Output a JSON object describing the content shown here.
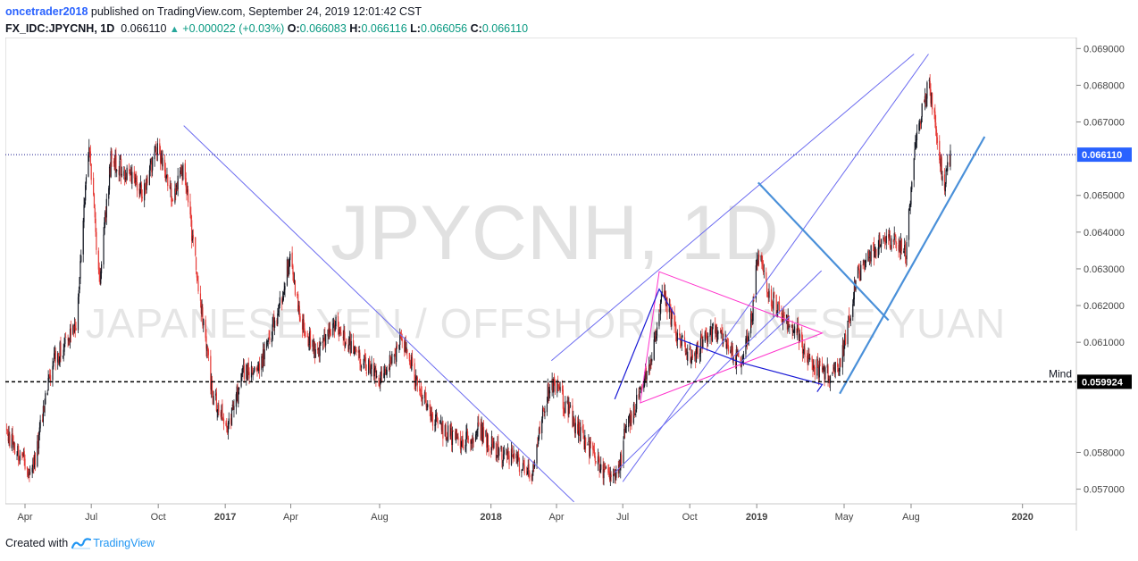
{
  "header": {
    "author": "oncetrader2018",
    "published_text": "published on TradingView.com, September 24, 2019 12:01:42 CST",
    "symbol": "FX_IDC:JPYCNH, 1D",
    "price": "0.066110",
    "change": "+0.000022 (+0.03%)",
    "o_label": "O:",
    "o_value": "0.066083",
    "h_label": "H:",
    "h_value": "0.066116",
    "l_label": "L:",
    "l_value": "0.066056",
    "c_label": "C:",
    "c_value": "0.066110"
  },
  "watermark": {
    "line1": "JPYCNH, 1D",
    "line2": "JAPANESE YEN / OFFSHORE CHINESE YUAN"
  },
  "colors": {
    "up": "#131722",
    "down": "#e53935",
    "trendline": "#6b6bf0",
    "channel_thick": "#4a90d9",
    "magenta": "#ff33cc",
    "dark_blue": "#1a1ad6",
    "price_label_bg": "#2962ff"
  },
  "footer": {
    "created_with": "Created with",
    "brand": "TradingView"
  },
  "chart_data": {
    "type": "candlestick",
    "title": "JPYCNH, 1D",
    "subtitle": "JAPANESE YEN / OFFSHORE CHINESE YUAN",
    "ylim": [
      0.0566,
      0.0693
    ],
    "y_ticks": [
      "0.069000",
      "0.068000",
      "0.067000",
      "0.065000",
      "0.064000",
      "0.063000",
      "0.062000",
      "0.061000",
      "0.058000",
      "0.057000"
    ],
    "x_range": [
      "2016-03-05",
      "2020-03-15"
    ],
    "x_ticks": [
      {
        "label": "Apr",
        "date": "2016-04-01"
      },
      {
        "label": "Jul",
        "date": "2016-07-01"
      },
      {
        "label": "Oct",
        "date": "2016-10-01"
      },
      {
        "label": "2017",
        "date": "2017-01-01",
        "bold": true
      },
      {
        "label": "Apr",
        "date": "2017-04-01"
      },
      {
        "label": "Aug",
        "date": "2017-08-01"
      },
      {
        "label": "2018",
        "date": "2018-01-01",
        "bold": true
      },
      {
        "label": "Apr",
        "date": "2018-04-01"
      },
      {
        "label": "Jul",
        "date": "2018-07-01"
      },
      {
        "label": "Oct",
        "date": "2018-10-01"
      },
      {
        "label": "2019",
        "date": "2019-01-01",
        "bold": true
      },
      {
        "label": "May",
        "date": "2019-05-01"
      },
      {
        "label": "Aug",
        "date": "2019-08-01"
      },
      {
        "label": "2020",
        "date": "2020-01-01",
        "bold": true
      }
    ],
    "close_anchors": [
      [
        "2016-03-05",
        0.0586
      ],
      [
        "2016-04-10",
        0.0574
      ],
      [
        "2016-05-10",
        0.0605
      ],
      [
        "2016-06-10",
        0.0614
      ],
      [
        "2016-06-28",
        0.0665
      ],
      [
        "2016-07-12",
        0.0626
      ],
      [
        "2016-07-28",
        0.066
      ],
      [
        "2016-08-20",
        0.0656
      ],
      [
        "2016-09-10",
        0.065
      ],
      [
        "2016-09-30",
        0.0664
      ],
      [
        "2016-10-20",
        0.065
      ],
      [
        "2016-11-05",
        0.0658
      ],
      [
        "2016-11-25",
        0.0625
      ],
      [
        "2016-12-15",
        0.0595
      ],
      [
        "2017-01-05",
        0.0587
      ],
      [
        "2017-01-25",
        0.0601
      ],
      [
        "2017-02-20",
        0.0605
      ],
      [
        "2017-03-15",
        0.0618
      ],
      [
        "2017-03-30",
        0.0633
      ],
      [
        "2017-04-15",
        0.0616
      ],
      [
        "2017-05-05",
        0.0607
      ],
      [
        "2017-06-01",
        0.0615
      ],
      [
        "2017-07-01",
        0.0606
      ],
      [
        "2017-08-01",
        0.06
      ],
      [
        "2017-09-01",
        0.0611
      ],
      [
        "2017-09-25",
        0.0597
      ],
      [
        "2017-10-20",
        0.0587
      ],
      [
        "2017-11-20",
        0.0583
      ],
      [
        "2017-12-15",
        0.0586
      ],
      [
        "2018-01-10",
        0.058
      ],
      [
        "2018-02-05",
        0.0578
      ],
      [
        "2018-02-25",
        0.0573
      ],
      [
        "2018-03-10",
        0.0588
      ],
      [
        "2018-03-25",
        0.06
      ],
      [
        "2018-04-15",
        0.0592
      ],
      [
        "2018-05-10",
        0.0583
      ],
      [
        "2018-06-05",
        0.0575
      ],
      [
        "2018-06-25",
        0.0574
      ],
      [
        "2018-07-05",
        0.0587
      ],
      [
        "2018-07-25",
        0.0596
      ],
      [
        "2018-08-10",
        0.0605
      ],
      [
        "2018-08-25",
        0.0625
      ],
      [
        "2018-09-10",
        0.0613
      ],
      [
        "2018-10-05",
        0.0605
      ],
      [
        "2018-10-20",
        0.0611
      ],
      [
        "2018-11-05",
        0.0613
      ],
      [
        "2018-11-25",
        0.0607
      ],
      [
        "2018-12-10",
        0.0605
      ],
      [
        "2018-12-25",
        0.0616
      ],
      [
        "2019-01-03",
        0.0635
      ],
      [
        "2019-01-15",
        0.0624
      ],
      [
        "2019-02-05",
        0.0617
      ],
      [
        "2019-02-25",
        0.0613
      ],
      [
        "2019-03-15",
        0.0605
      ],
      [
        "2019-03-31",
        0.0602
      ],
      [
        "2019-04-15",
        0.0601
      ],
      [
        "2019-04-25",
        0.0604
      ],
      [
        "2019-05-05",
        0.0614
      ],
      [
        "2019-05-20",
        0.0628
      ],
      [
        "2019-06-05",
        0.0634
      ],
      [
        "2019-06-25",
        0.0638
      ],
      [
        "2019-07-10",
        0.0637
      ],
      [
        "2019-07-25",
        0.0635
      ],
      [
        "2019-08-05",
        0.066
      ],
      [
        "2019-08-15",
        0.0672
      ],
      [
        "2019-08-25",
        0.0681
      ],
      [
        "2019-09-05",
        0.0668
      ],
      [
        "2019-09-15",
        0.0652
      ],
      [
        "2019-09-24",
        0.06611
      ]
    ],
    "last_price": {
      "value": 0.06611,
      "label": "0.066110"
    },
    "horizontal_lines": [
      {
        "value": 0.059924,
        "label": "0.059924",
        "text": "Mind",
        "style": "dashed"
      }
    ],
    "drawings": [
      {
        "kind": "trendline",
        "style": "thin",
        "points": [
          [
            "2016-11-05",
            0.0669
          ],
          [
            "2018-04-25",
            0.05665
          ]
        ]
      },
      {
        "kind": "trendline",
        "style": "thin",
        "points": [
          [
            "2018-03-25",
            0.0605
          ],
          [
            "2019-08-05",
            0.06885
          ]
        ]
      },
      {
        "kind": "trendline",
        "style": "thin",
        "points": [
          [
            "2018-06-20",
            0.05745
          ],
          [
            "2019-03-31",
            0.06295
          ]
        ]
      },
      {
        "kind": "trendline",
        "style": "thin",
        "points": [
          [
            "2018-07-01",
            0.0572
          ],
          [
            "2019-08-25",
            0.06885
          ]
        ]
      },
      {
        "kind": "trendline",
        "style": "thick",
        "points": [
          [
            "2019-01-03",
            0.06535
          ],
          [
            "2019-07-01",
            0.0616
          ]
        ]
      },
      {
        "kind": "trendline",
        "style": "thick",
        "points": [
          [
            "2019-04-25",
            0.0596
          ],
          [
            "2019-11-10",
            0.0666
          ]
        ]
      },
      {
        "kind": "triangle",
        "style": "magenta",
        "points": [
          [
            "2018-08-20",
            0.06292
          ],
          [
            "2019-04-01",
            0.06125
          ],
          [
            "2018-07-25",
            0.05935
          ]
        ]
      },
      {
        "kind": "polyline",
        "style": "dark",
        "points": [
          [
            "2018-06-20",
            0.05945
          ],
          [
            "2018-08-20",
            0.06245
          ],
          [
            "2018-09-10",
            0.06175
          ]
        ]
      },
      {
        "kind": "polyline",
        "style": "dark",
        "points": [
          [
            "2018-09-15",
            0.0611
          ],
          [
            "2018-12-10",
            0.06045
          ],
          [
            "2019-04-01",
            0.05985
          ],
          [
            "2019-03-25",
            0.05965
          ]
        ]
      },
      {
        "kind": "polyline",
        "style": "thin",
        "points": [
          [
            "2018-12-10",
            0.06045
          ],
          [
            "2019-02-15",
            0.0617
          ]
        ]
      }
    ]
  }
}
